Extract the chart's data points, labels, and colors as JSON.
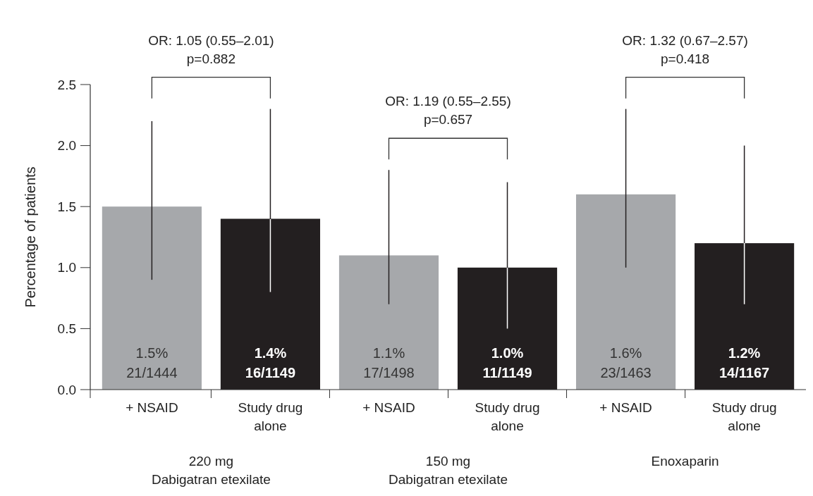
{
  "chart_data": {
    "type": "bar",
    "ylabel": "Percentage of patients",
    "categories": [
      "+ NSAID",
      "Study drug alone",
      "+ NSAID",
      "Study drug alone",
      "+ NSAID",
      "Study drug alone"
    ],
    "values": [
      1.5,
      1.4,
      1.1,
      1.0,
      1.6,
      1.2
    ],
    "colors": [
      "#a6a8ab",
      "#231f20",
      "#a6a8ab",
      "#231f20",
      "#a6a8ab",
      "#231f20"
    ],
    "errors": [
      [
        0.9,
        2.2
      ],
      [
        0.8,
        2.3
      ],
      [
        0.7,
        1.8
      ],
      [
        0.5,
        1.7
      ],
      [
        1.0,
        2.3
      ],
      [
        0.7,
        2.0
      ]
    ],
    "value_labels": [
      "1.5%\n21/1444",
      "1.4%\n16/1149",
      "1.1%\n17/1498",
      "1.0%\n11/1149",
      "1.6%\n23/1463",
      "1.2%\n14/1167"
    ],
    "ylim": [
      0,
      2.5
    ],
    "yticks": [
      {
        "value": 0,
        "label": "0.0"
      },
      0.5,
      {
        "value": 1,
        "label": "1.0"
      },
      1.5,
      {
        "value": 2,
        "label": "2.0"
      },
      2.5
    ],
    "annotations": [
      "OR: 1.05 (0.55–2.01)\np=0.882",
      "OR: 1.19 (0.55–2.55)\np=0.657",
      "OR: 1.32 (0.67–2.57)\np=0.418",
      "220 mg\nDabigatran etexilate",
      "150 mg\nDabigatran etexilate",
      "Enoxaparin"
    ],
    "grid": false
  }
}
